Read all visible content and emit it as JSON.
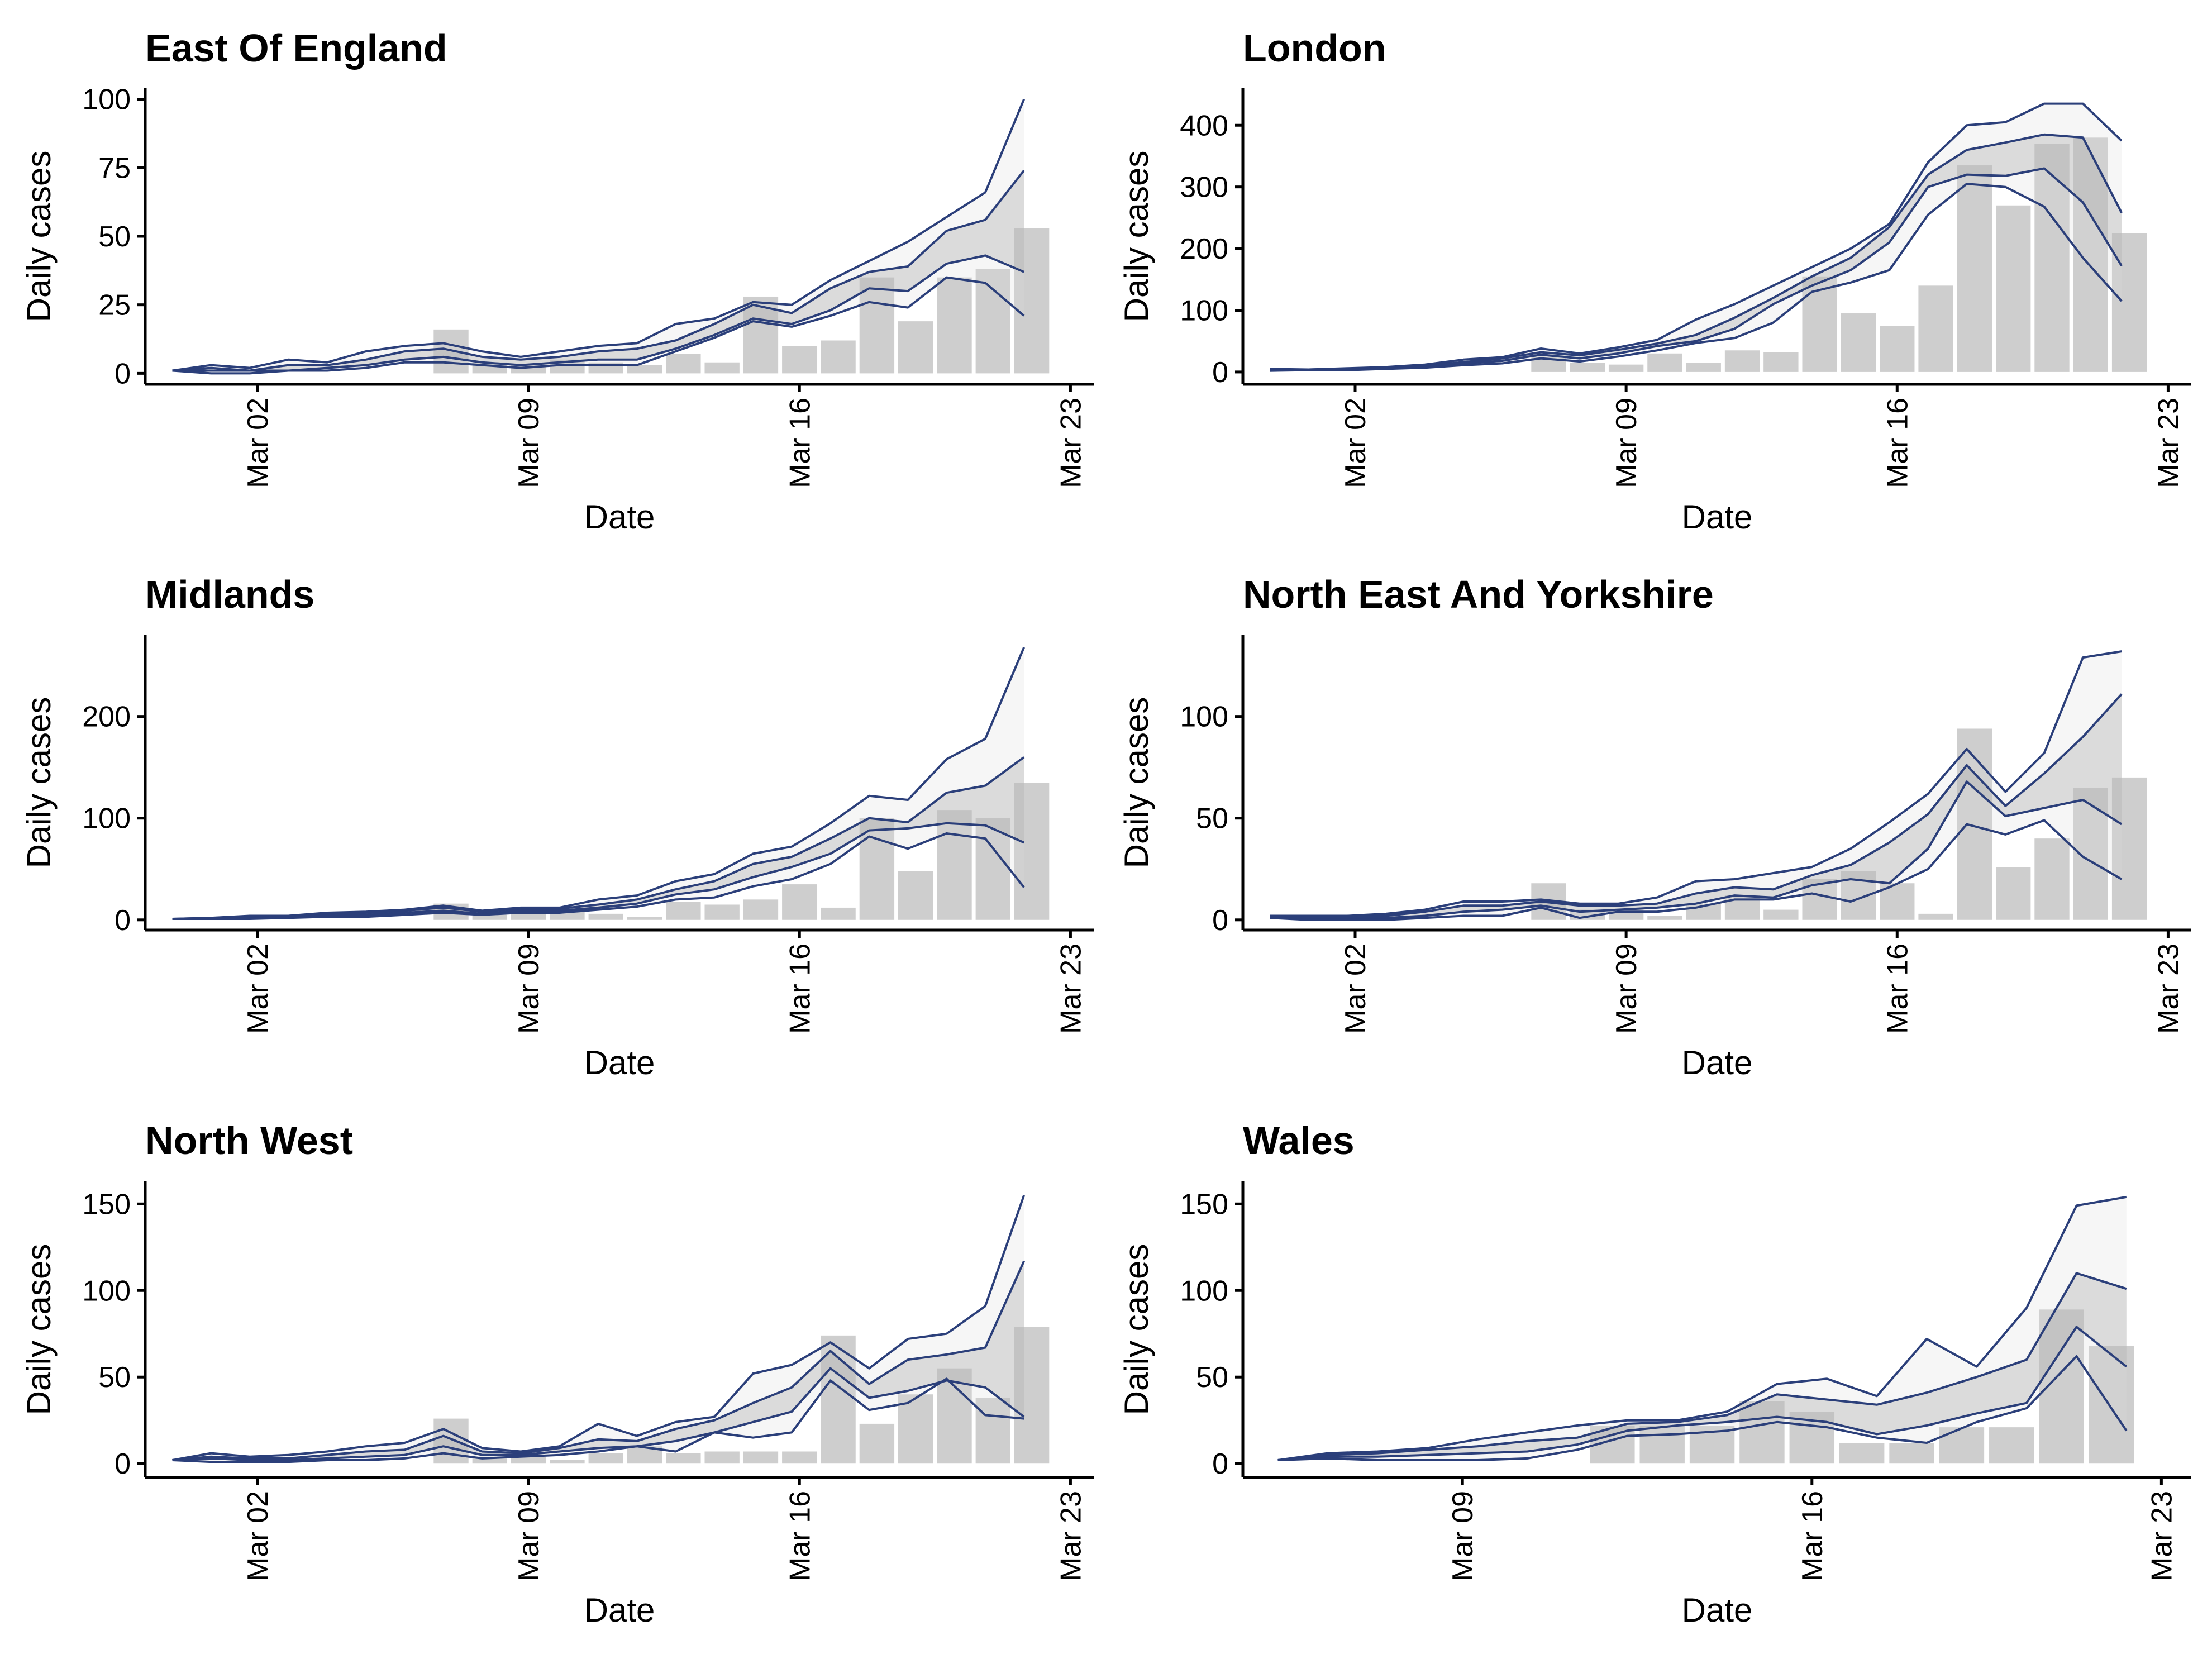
{
  "chart_data": [
    {
      "type": "bar",
      "title": "East Of England",
      "xlabel": "Date",
      "ylabel": "Daily cases",
      "x_ticks": [
        "Mar 02",
        "Mar 09",
        "Mar 16",
        "Mar 23"
      ],
      "x_tick_days": [
        2,
        9,
        16,
        23
      ],
      "xlim_days": [
        -0.9,
        23.6
      ],
      "y_ticks": [
        0,
        25,
        50,
        75,
        100
      ],
      "ylim": [
        -4,
        104
      ],
      "bars": {
        "x": [
          7,
          8,
          9,
          10,
          11,
          12,
          13,
          14,
          15,
          16,
          17,
          18,
          19,
          20,
          21,
          22
        ],
        "values": [
          16,
          4,
          3,
          5,
          4,
          3,
          7,
          4,
          28,
          10,
          12,
          35,
          19,
          35,
          38,
          53
        ]
      },
      "lines_x": [
        -0.2,
        0.8,
        1.8,
        2.8,
        3.8,
        4.8,
        5.8,
        6.8,
        7.8,
        8.8,
        9.8,
        10.8,
        11.8,
        12.8,
        13.8,
        14.8,
        15.8,
        16.8,
        17.8,
        18.8,
        19.8,
        20.8,
        21.8
      ],
      "lines": {
        "upper90": [
          1,
          3,
          2,
          5,
          4,
          8,
          10,
          11,
          8,
          6,
          8,
          10,
          11,
          18,
          20,
          26,
          25,
          34,
          41,
          48,
          57,
          66,
          100
        ],
        "upper50": [
          1,
          2,
          1,
          3,
          3,
          5,
          8,
          9,
          6,
          5,
          6,
          8,
          9,
          12,
          18,
          25,
          22,
          31,
          37,
          39,
          52,
          56,
          74
        ],
        "lower50": [
          1,
          1,
          1,
          1,
          2,
          3,
          5,
          6,
          4,
          3,
          4,
          5,
          5,
          9,
          14,
          20,
          18,
          23,
          31,
          30,
          40,
          43,
          37
        ],
        "lower90": [
          1,
          0,
          0,
          1,
          1,
          2,
          4,
          4,
          3,
          2,
          3,
          3,
          3,
          8,
          13,
          19,
          17,
          21,
          26,
          24,
          35,
          33,
          21
        ]
      }
    },
    {
      "type": "bar",
      "title": "London",
      "xlabel": "Date",
      "ylabel": "Daily cases",
      "x_ticks": [
        "Mar 02",
        "Mar 09",
        "Mar 16",
        "Mar 23"
      ],
      "x_tick_days": [
        2,
        9,
        16,
        23
      ],
      "xlim_days": [
        -0.9,
        23.6
      ],
      "y_ticks": [
        0,
        100,
        200,
        300,
        400
      ],
      "ylim": [
        -20,
        460
      ],
      "bars": {
        "x": [
          7,
          8,
          9,
          10,
          11,
          12,
          13,
          14,
          15,
          16,
          17,
          18,
          19,
          20,
          21,
          22
        ],
        "values": [
          25,
          15,
          12,
          30,
          15,
          35,
          32,
          155,
          95,
          75,
          140,
          335,
          270,
          370,
          380,
          225
        ]
      },
      "lines_x": [
        -0.2,
        0.8,
        1.8,
        2.8,
        3.8,
        4.8,
        5.8,
        6.8,
        7.8,
        8.8,
        9.8,
        10.8,
        11.8,
        12.8,
        13.8,
        14.8,
        15.8,
        16.8,
        17.8,
        18.8,
        19.8,
        20.8,
        21.8
      ],
      "lines": {
        "upper90": [
          5,
          4,
          6,
          8,
          12,
          20,
          24,
          38,
          30,
          40,
          52,
          85,
          110,
          140,
          170,
          200,
          240,
          340,
          400,
          405,
          435,
          435,
          375
        ],
        "upper50": [
          4,
          4,
          5,
          7,
          10,
          16,
          22,
          32,
          27,
          36,
          46,
          60,
          88,
          120,
          155,
          185,
          235,
          320,
          360,
          372,
          385,
          380,
          258
        ],
        "lower50": [
          3,
          3,
          4,
          6,
          9,
          14,
          18,
          28,
          22,
          30,
          42,
          50,
          70,
          110,
          140,
          165,
          210,
          300,
          320,
          318,
          330,
          275,
          172
        ],
        "lower90": [
          2,
          3,
          3,
          5,
          7,
          11,
          14,
          22,
          17,
          25,
          35,
          47,
          55,
          80,
          130,
          145,
          165,
          255,
          305,
          300,
          268,
          185,
          115
        ]
      }
    },
    {
      "type": "bar",
      "title": "Midlands",
      "xlabel": "Date",
      "ylabel": "Daily cases",
      "x_ticks": [
        "Mar 02",
        "Mar 09",
        "Mar 16",
        "Mar 23"
      ],
      "x_tick_days": [
        2,
        9,
        16,
        23
      ],
      "xlim_days": [
        -0.9,
        23.6
      ],
      "y_ticks": [
        0,
        100,
        200
      ],
      "ylim": [
        -10,
        280
      ],
      "bars": {
        "x": [
          7,
          8,
          9,
          10,
          11,
          12,
          13,
          14,
          15,
          16,
          17,
          18,
          19,
          20,
          21,
          22
        ],
        "values": [
          16,
          5,
          6,
          8,
          6,
          3,
          18,
          15,
          20,
          35,
          12,
          100,
          48,
          108,
          100,
          135
        ]
      },
      "lines_x": [
        -0.2,
        0.8,
        1.8,
        2.8,
        3.8,
        4.8,
        5.8,
        6.8,
        7.8,
        8.8,
        9.8,
        10.8,
        11.8,
        12.8,
        13.8,
        14.8,
        15.8,
        16.8,
        17.8,
        18.8,
        19.8,
        20.8,
        21.8
      ],
      "lines": {
        "upper90": [
          1,
          2,
          4,
          4,
          7,
          8,
          10,
          14,
          9,
          12,
          12,
          20,
          24,
          38,
          45,
          65,
          72,
          95,
          122,
          118,
          158,
          178,
          268
        ],
        "upper50": [
          1,
          2,
          3,
          4,
          6,
          7,
          9,
          12,
          8,
          11,
          11,
          15,
          20,
          30,
          38,
          55,
          62,
          80,
          100,
          96,
          125,
          132,
          160
        ],
        "lower50": [
          1,
          1,
          2,
          3,
          4,
          5,
          7,
          9,
          6,
          9,
          9,
          12,
          16,
          25,
          30,
          42,
          52,
          65,
          88,
          90,
          95,
          93,
          76
        ],
        "lower90": [
          1,
          1,
          1,
          2,
          3,
          3,
          5,
          7,
          5,
          7,
          7,
          10,
          13,
          20,
          22,
          33,
          40,
          55,
          82,
          70,
          85,
          80,
          32
        ]
      }
    },
    {
      "type": "bar",
      "title": "North East And Yorkshire",
      "xlabel": "Date",
      "ylabel": "Daily cases",
      "x_ticks": [
        "Mar 02",
        "Mar 09",
        "Mar 16",
        "Mar 23"
      ],
      "x_tick_days": [
        2,
        9,
        16,
        23
      ],
      "xlim_days": [
        -0.9,
        23.6
      ],
      "y_ticks": [
        0,
        50,
        100
      ],
      "ylim": [
        -5,
        140
      ],
      "bars": {
        "x": [
          7,
          8,
          9,
          10,
          11,
          12,
          13,
          14,
          15,
          16,
          17,
          18,
          19,
          20,
          21,
          22
        ],
        "values": [
          18,
          5,
          5,
          2,
          8,
          12,
          5,
          20,
          24,
          18,
          3,
          94,
          26,
          40,
          65,
          70
        ]
      },
      "lines_x": [
        -0.2,
        0.8,
        1.8,
        2.8,
        3.8,
        4.8,
        5.8,
        6.8,
        7.8,
        8.8,
        9.8,
        10.8,
        11.8,
        12.8,
        13.8,
        14.8,
        15.8,
        16.8,
        17.8,
        18.8,
        19.8,
        20.8,
        21.8
      ],
      "lines": {
        "upper90": [
          2,
          2,
          2,
          3,
          5,
          9,
          9,
          10,
          8,
          8,
          11,
          19,
          20,
          23,
          26,
          35,
          48,
          62,
          84,
          63,
          82,
          129,
          132
        ],
        "upper50": [
          2,
          1,
          1,
          2,
          4,
          7,
          7,
          9,
          7,
          7,
          8,
          13,
          16,
          15,
          22,
          27,
          38,
          52,
          76,
          56,
          72,
          90,
          111
        ],
        "lower50": [
          1,
          1,
          1,
          1,
          2,
          4,
          5,
          7,
          4,
          5,
          6,
          8,
          12,
          11,
          17,
          20,
          18,
          35,
          68,
          51,
          55,
          59,
          47
        ],
        "lower90": [
          1,
          0,
          0,
          0,
          1,
          2,
          2,
          6,
          1,
          4,
          4,
          6,
          10,
          10,
          13,
          9,
          16,
          25,
          47,
          42,
          49,
          31,
          20
        ]
      }
    },
    {
      "type": "bar",
      "title": "North West",
      "xlabel": "Date",
      "ylabel": "Daily cases",
      "x_ticks": [
        "Mar 02",
        "Mar 09",
        "Mar 16",
        "Mar 23"
      ],
      "x_tick_days": [
        2,
        9,
        16,
        23
      ],
      "xlim_days": [
        -0.9,
        23.6
      ],
      "y_ticks": [
        0,
        50,
        100,
        150
      ],
      "ylim": [
        -8,
        163
      ],
      "bars": {
        "x": [
          7,
          8,
          9,
          10,
          11,
          12,
          13,
          14,
          15,
          16,
          17,
          18,
          19,
          20,
          21,
          22
        ],
        "values": [
          26,
          4,
          4,
          2,
          6,
          10,
          6,
          7,
          7,
          7,
          74,
          23,
          40,
          55,
          38,
          79
        ]
      },
      "lines_x": [
        -0.2,
        0.8,
        1.8,
        2.8,
        3.8,
        4.8,
        5.8,
        6.8,
        7.8,
        8.8,
        9.8,
        10.8,
        11.8,
        12.8,
        13.8,
        14.8,
        15.8,
        16.8,
        17.8,
        18.8,
        19.8,
        20.8,
        21.8
      ],
      "lines": {
        "upper90": [
          2,
          6,
          4,
          5,
          7,
          10,
          12,
          20,
          9,
          7,
          10,
          23,
          16,
          24,
          27,
          52,
          57,
          70,
          55,
          72,
          75,
          91,
          155
        ],
        "upper50": [
          2,
          4,
          3,
          3,
          5,
          7,
          8,
          16,
          7,
          6,
          9,
          14,
          13,
          20,
          25,
          35,
          44,
          65,
          46,
          60,
          63,
          67,
          117
        ],
        "lower50": [
          2,
          3,
          2,
          2,
          3,
          4,
          5,
          10,
          5,
          5,
          7,
          9,
          10,
          13,
          18,
          24,
          30,
          55,
          38,
          42,
          48,
          44,
          27
        ],
        "lower90": [
          2,
          1,
          1,
          1,
          2,
          2,
          3,
          6,
          3,
          4,
          5,
          7,
          10,
          7,
          18,
          15,
          18,
          48,
          31,
          35,
          49,
          28,
          26
        ]
      }
    },
    {
      "type": "bar",
      "title": "Wales",
      "xlabel": "Date",
      "ylabel": "Daily cases",
      "x_ticks": [
        "Mar 09",
        "Mar 16",
        "Mar 23"
      ],
      "x_tick_days": [
        9,
        16,
        23
      ],
      "xlim_days": [
        4.6,
        23.6
      ],
      "y_ticks": [
        0,
        50,
        100,
        150
      ],
      "ylim": [
        -8,
        163
      ],
      "bars": {
        "x": [
          12,
          13,
          14,
          15,
          16,
          17,
          18,
          19,
          20,
          21,
          22
        ],
        "values": [
          22,
          22,
          22,
          36,
          30,
          12,
          12,
          21,
          21,
          89,
          68
        ]
      },
      "lines_x": [
        5.3,
        6.3,
        7.3,
        8.3,
        9.3,
        10.3,
        11.3,
        12.3,
        13.3,
        14.3,
        15.3,
        16.3,
        17.3,
        18.3,
        19.3,
        20.3,
        21.3,
        22.3
      ],
      "lines": {
        "upper90": [
          2,
          6,
          7,
          9,
          14,
          18,
          22,
          25,
          25,
          30,
          46,
          49,
          39,
          72,
          56,
          90,
          149,
          154
        ],
        "upper50": [
          2,
          5,
          6,
          8,
          10,
          13,
          15,
          23,
          24,
          28,
          40,
          37,
          34,
          41,
          50,
          60,
          110,
          101
        ],
        "lower50": [
          2,
          4,
          4,
          5,
          6,
          7,
          11,
          19,
          22,
          24,
          27,
          24,
          17,
          22,
          29,
          35,
          79,
          56
        ],
        "lower90": [
          2,
          3,
          2,
          2,
          2,
          3,
          8,
          16,
          17,
          19,
          24,
          21,
          15,
          12,
          24,
          32,
          62,
          19
        ]
      }
    }
  ]
}
